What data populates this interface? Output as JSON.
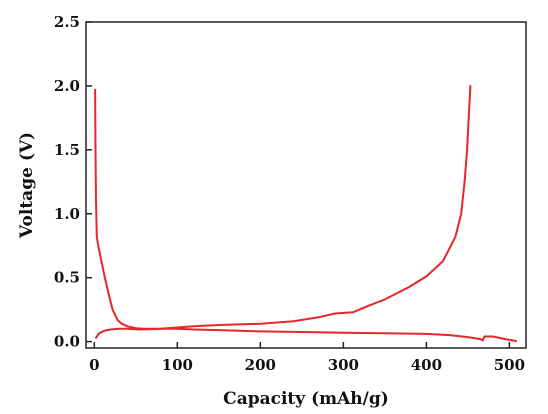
{
  "chart_data": {
    "type": "line",
    "title": "",
    "xlabel": "Capacity (mAh/g)",
    "ylabel": "Voltage (V)",
    "xlim": [
      -10,
      520
    ],
    "ylim": [
      -0.05,
      2.5
    ],
    "x_ticks": [
      0,
      100,
      200,
      300,
      400,
      500
    ],
    "x_tick_labels": [
      "0",
      "100",
      "200",
      "300",
      "400",
      "500"
    ],
    "y_ticks": [
      0.0,
      0.5,
      1.0,
      1.5,
      2.0,
      2.5
    ],
    "y_tick_labels": [
      "0.0",
      "0.5",
      "1.0",
      "1.5",
      "2.0",
      "2.5"
    ],
    "grid": false,
    "legend": "none",
    "series_color": "#e8252a",
    "series": [
      {
        "x": [
          1,
          1.5,
          2,
          3,
          5,
          8,
          12,
          17,
          22,
          28,
          33,
          40,
          50,
          60,
          80,
          100,
          120,
          150,
          200,
          250,
          300,
          350,
          400,
          430,
          450,
          465,
          468,
          470,
          480,
          495,
          508
        ],
        "y": [
          1.97,
          1.5,
          1.1,
          0.82,
          0.74,
          0.65,
          0.52,
          0.38,
          0.25,
          0.17,
          0.14,
          0.12,
          0.105,
          0.1,
          0.1,
          0.1,
          0.095,
          0.09,
          0.08,
          0.075,
          0.07,
          0.065,
          0.06,
          0.05,
          0.035,
          0.02,
          0.01,
          0.04,
          0.04,
          0.02,
          0.005
        ]
      },
      {
        "x": [
          2,
          5,
          10,
          15,
          20,
          30,
          40,
          55,
          80,
          100,
          120,
          150,
          200,
          240,
          270,
          290,
          312,
          330,
          350,
          380,
          400,
          420,
          435,
          442,
          446,
          449,
          451,
          453
        ],
        "y": [
          0.03,
          0.06,
          0.08,
          0.09,
          0.095,
          0.1,
          0.1,
          0.095,
          0.1,
          0.11,
          0.12,
          0.13,
          0.14,
          0.16,
          0.19,
          0.22,
          0.23,
          0.28,
          0.33,
          0.43,
          0.51,
          0.63,
          0.82,
          1.0,
          1.25,
          1.5,
          1.75,
          2.0
        ]
      }
    ]
  }
}
